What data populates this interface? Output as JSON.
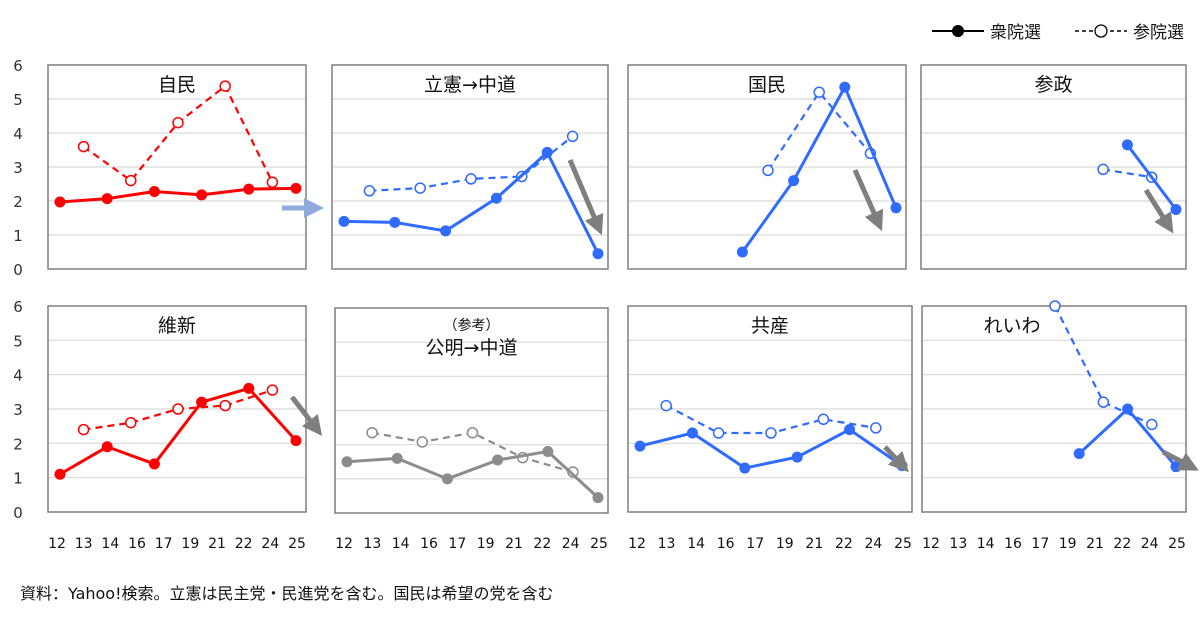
{
  "legend": {
    "shugiin": "衆院選",
    "sangiin": "参院選"
  },
  "source": "資料：Yahoo!検索。立憲は民主党・民進党を含む。国民は希望の党を含む",
  "chart_data": {
    "type": "line",
    "ylim": [
      0,
      6
    ],
    "yticks": [
      "0",
      "1",
      "2",
      "3",
      "4",
      "5",
      "6"
    ],
    "categories": [
      "12",
      "13",
      "14",
      "16",
      "17",
      "19",
      "21",
      "22",
      "24",
      "25"
    ],
    "grid": true,
    "legend_placement": "top-right",
    "panels": [
      {
        "title": "自民",
        "color": "#ff0000",
        "shugiin": [
          1.97,
          2.07,
          2.28,
          2.18,
          2.35,
          2.37
        ],
        "sangiin": [
          3.6,
          2.6,
          4.3,
          5.38,
          2.55
        ]
      },
      {
        "title": "立憲→中道",
        "color": "#2f6bff",
        "shugiin": [
          1.4,
          1.37,
          1.12,
          2.08,
          3.43,
          0.45
        ],
        "sangiin": [
          2.3,
          2.38,
          2.65,
          2.72,
          3.9
        ]
      },
      {
        "title": "国民",
        "color": "#2f6bff",
        "shugiin": [
          null,
          null,
          0.5,
          2.6,
          5.35,
          1.8
        ],
        "sangiin": [
          null,
          null,
          2.9,
          5.2,
          3.4
        ]
      },
      {
        "title": "参政",
        "color": "#2f6bff",
        "shugiin": [
          null,
          null,
          null,
          null,
          3.65,
          1.75
        ],
        "sangiin": [
          null,
          null,
          null,
          2.93,
          2.7
        ]
      },
      {
        "title": "維新",
        "color": "#ff0000",
        "shugiin": [
          1.1,
          1.9,
          1.4,
          3.2,
          3.6,
          2.08
        ],
        "sangiin": [
          2.4,
          2.6,
          3.0,
          3.1,
          3.55
        ]
      },
      {
        "subtitle": "（参考）",
        "title": "公明→中道",
        "color": "#8c8c8c",
        "shugiin": [
          1.5,
          1.6,
          1.0,
          1.55,
          1.8,
          0.45
        ],
        "sangiin": [
          2.35,
          2.08,
          2.35,
          1.62,
          1.2
        ]
      },
      {
        "title": "共産",
        "color": "#2f6bff",
        "shugiin": [
          1.92,
          2.3,
          1.28,
          1.6,
          2.4,
          1.35
        ],
        "sangiin": [
          3.1,
          2.3,
          2.3,
          2.7,
          2.45
        ]
      },
      {
        "title": "れいわ",
        "color": "#2f6bff",
        "shugiin": [
          null,
          null,
          null,
          1.7,
          3.0,
          1.32
        ],
        "sangiin": [
          null,
          null,
          6.0,
          3.2,
          2.55
        ]
      }
    ]
  }
}
